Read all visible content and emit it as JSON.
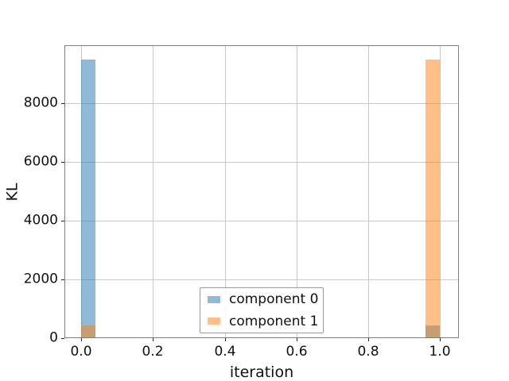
{
  "chart_data": {
    "type": "bar",
    "title": "",
    "xlabel": "iteration",
    "ylabel": "KL",
    "x_ticks": [
      0.0,
      0.2,
      0.4,
      0.6,
      0.8,
      1.0
    ],
    "x_tick_labels": [
      "0.0",
      "0.2",
      "0.4",
      "0.6",
      "0.8",
      "1.0"
    ],
    "y_ticks": [
      0,
      2000,
      4000,
      6000,
      8000
    ],
    "y_tick_labels": [
      "0",
      "2000",
      "4000",
      "6000",
      "8000"
    ],
    "xlim": [
      -0.047,
      1.053
    ],
    "ylim": [
      0,
      9975
    ],
    "grid": true,
    "bar_width": 0.04,
    "bar_alpha": 0.5,
    "series": [
      {
        "name": "component 0",
        "base_color": "#1f77b4",
        "x": [
          0.02,
          0.98
        ],
        "values": [
          9500,
          430
        ]
      },
      {
        "name": "component 1",
        "base_color": "#ff7f0e",
        "x": [
          0.02,
          0.98
        ],
        "values": [
          430,
          9500
        ]
      }
    ],
    "legend": {
      "position": "lower center",
      "entries": [
        {
          "label": "component 0",
          "base_color": "#1f77b4"
        },
        {
          "label": "component 1",
          "base_color": "#ff7f0e"
        }
      ]
    },
    "colors": {
      "grid": "#c9c9c9",
      "spine": "#7f7f7f",
      "text": "#111111",
      "overlap_rendered": "#c79d74",
      "blue_rendered": "#92bad8",
      "orange_rendered": "#fcbd85"
    }
  }
}
